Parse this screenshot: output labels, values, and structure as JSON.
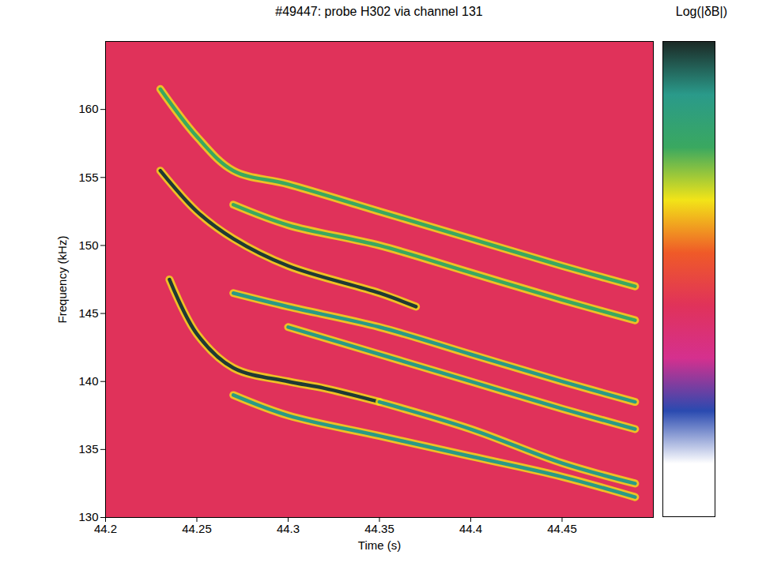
{
  "chart_data": {
    "type": "spectrogram",
    "title": "#49447: probe H302 via channel 131",
    "x_label": "Time (s)",
    "y_label": "Frequency (kHz)",
    "xlim": [
      44.2,
      44.5
    ],
    "xticks": [
      44.2,
      44.25,
      44.3,
      44.35,
      44.4,
      44.45
    ],
    "ylim": [
      130,
      165
    ],
    "yticks": [
      130,
      135,
      140,
      145,
      150,
      155,
      160
    ],
    "color": "#e0325a",
    "series": [
      {
        "color": "#3aa860",
        "x": [
          44.23,
          44.25,
          44.27,
          44.3,
          44.35,
          44.4,
          44.45,
          44.49
        ],
        "values": [
          161.5,
          158,
          155.5,
          154.5,
          152.5,
          150.5,
          148.5,
          147
        ]
      },
      {
        "color": "#1f3a34",
        "x": [
          44.23,
          44.25,
          44.27,
          44.3,
          44.35,
          44.37
        ],
        "values": [
          155.5,
          152.5,
          150.5,
          148.5,
          146.5,
          145.5
        ]
      },
      {
        "color": "#1f3a34",
        "x": [
          44.235,
          44.25,
          44.27,
          44.3,
          44.32,
          44.35
        ],
        "values": [
          147.5,
          143.5,
          141,
          140,
          139.5,
          138.5
        ]
      },
      {
        "color": "#2a9a86",
        "x": [
          44.35,
          44.4,
          44.45,
          44.49
        ],
        "values": [
          138.5,
          136.5,
          134,
          132.5
        ]
      },
      {
        "color": "#3aa860",
        "x": [
          44.27,
          44.3,
          44.35,
          44.4,
          44.45,
          44.49
        ],
        "values": [
          153,
          151.5,
          150,
          148,
          146,
          144.5
        ]
      },
      {
        "color": "#2a9a86",
        "x": [
          44.27,
          44.3,
          44.35,
          44.4,
          44.45,
          44.49
        ],
        "values": [
          146.5,
          145.5,
          144,
          142,
          140,
          138.5
        ]
      },
      {
        "color": "#2a9a86",
        "x": [
          44.3,
          44.35,
          44.4,
          44.45,
          44.49
        ],
        "values": [
          144,
          142,
          140,
          138,
          136.5
        ]
      },
      {
        "color": "#2a9a86",
        "x": [
          44.27,
          44.3,
          44.35,
          44.4,
          44.45,
          44.49
        ],
        "values": [
          139,
          137.5,
          136,
          134.5,
          133,
          131.5
        ]
      }
    ],
    "colorbar": {
      "label": "Log(|δB|)",
      "colors": [
        "#1c2a26",
        "#2a9a8a",
        "#3aa860",
        "#f2e418",
        "#ef5a28",
        "#e0325a",
        "#d5308e",
        "#2a4ab0",
        "#ffffff",
        "#ffffff"
      ]
    }
  }
}
